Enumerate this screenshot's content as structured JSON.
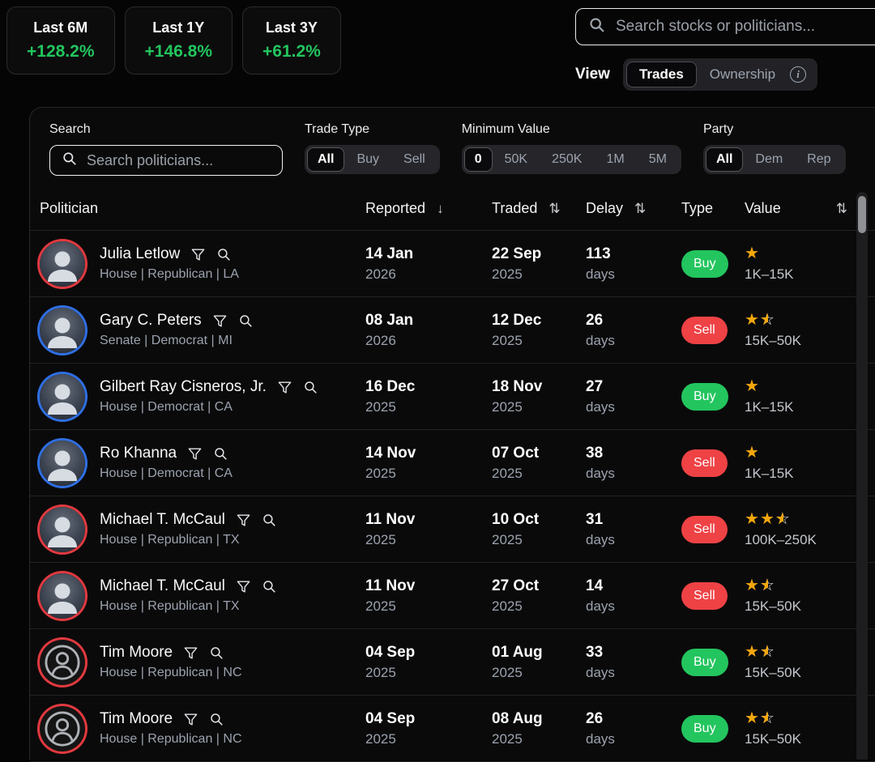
{
  "colors": {
    "positive": "#22c55e",
    "buy": "#23c55e",
    "sell": "#ee4245",
    "star": "#f3a70d",
    "republican_ring": "#e2393f",
    "democrat_ring": "#2f6fe4"
  },
  "stats": [
    {
      "label": "Last 6M",
      "value": "+128.2%"
    },
    {
      "label": "Last 1Y",
      "value": "+146.8%"
    },
    {
      "label": "Last 3Y",
      "value": "+61.2%"
    }
  ],
  "top_search": {
    "placeholder": "Search stocks or politicians..."
  },
  "view": {
    "label": "View",
    "options": [
      {
        "label": "Trades",
        "selected": true
      },
      {
        "label": "Ownership",
        "selected": false
      }
    ]
  },
  "filters": {
    "search": {
      "label": "Search",
      "placeholder": "Search politicians..."
    },
    "trade_type": {
      "label": "Trade Type",
      "options": [
        "All",
        "Buy",
        "Sell"
      ],
      "selected": "All"
    },
    "minimum_value": {
      "label": "Minimum Value",
      "options": [
        "0",
        "50K",
        "250K",
        "1M",
        "5M"
      ],
      "selected": "0"
    },
    "party": {
      "label": "Party",
      "options": [
        "All",
        "Dem",
        "Rep"
      ],
      "selected": "All"
    }
  },
  "table": {
    "columns": [
      {
        "label": "Politician"
      },
      {
        "label": "Reported",
        "sort_icon": "↓"
      },
      {
        "label": "Traded",
        "sort_icon": "⇅"
      },
      {
        "label": "Delay",
        "sort_icon": "⇅"
      },
      {
        "label": "Type"
      },
      {
        "label": "Value",
        "sort_icon": "⇅"
      }
    ],
    "rows": [
      {
        "name": "Julia Letlow",
        "meta": "House | Republican | LA",
        "party": "republican",
        "avatar": "photo",
        "reported": {
          "date": "14 Jan",
          "year": "2026"
        },
        "traded": {
          "date": "22 Sep",
          "year": "2025"
        },
        "delay": {
          "num": "113",
          "unit": "days"
        },
        "type": "Buy",
        "stars": 1,
        "value": "1K–15K"
      },
      {
        "name": "Gary C. Peters",
        "meta": "Senate | Democrat | MI",
        "party": "democrat",
        "avatar": "photo",
        "reported": {
          "date": "08 Jan",
          "year": "2026"
        },
        "traded": {
          "date": "12 Dec",
          "year": "2025"
        },
        "delay": {
          "num": "26",
          "unit": "days"
        },
        "type": "Sell",
        "stars": 1.5,
        "value": "15K–50K"
      },
      {
        "name": "Gilbert Ray Cisneros, Jr.",
        "meta": "House | Democrat | CA",
        "party": "democrat",
        "avatar": "photo",
        "reported": {
          "date": "16 Dec",
          "year": "2025"
        },
        "traded": {
          "date": "18 Nov",
          "year": "2025"
        },
        "delay": {
          "num": "27",
          "unit": "days"
        },
        "type": "Buy",
        "stars": 1,
        "value": "1K–15K"
      },
      {
        "name": "Ro Khanna",
        "meta": "House | Democrat | CA",
        "party": "democrat",
        "avatar": "photo",
        "reported": {
          "date": "14 Nov",
          "year": "2025"
        },
        "traded": {
          "date": "07 Oct",
          "year": "2025"
        },
        "delay": {
          "num": "38",
          "unit": "days"
        },
        "type": "Sell",
        "stars": 1,
        "value": "1K–15K"
      },
      {
        "name": "Michael T. McCaul",
        "meta": "House | Republican | TX",
        "party": "republican",
        "avatar": "photo",
        "reported": {
          "date": "11 Nov",
          "year": "2025"
        },
        "traded": {
          "date": "10 Oct",
          "year": "2025"
        },
        "delay": {
          "num": "31",
          "unit": "days"
        },
        "type": "Sell",
        "stars": 2.5,
        "value": "100K–250K"
      },
      {
        "name": "Michael T. McCaul",
        "meta": "House | Republican | TX",
        "party": "republican",
        "avatar": "photo",
        "reported": {
          "date": "11 Nov",
          "year": "2025"
        },
        "traded": {
          "date": "27 Oct",
          "year": "2025"
        },
        "delay": {
          "num": "14",
          "unit": "days"
        },
        "type": "Sell",
        "stars": 1.5,
        "value": "15K–50K"
      },
      {
        "name": "Tim Moore",
        "meta": "House | Republican | NC",
        "party": "republican",
        "avatar": "placeholder",
        "reported": {
          "date": "04 Sep",
          "year": "2025"
        },
        "traded": {
          "date": "01 Aug",
          "year": "2025"
        },
        "delay": {
          "num": "33",
          "unit": "days"
        },
        "type": "Buy",
        "stars": 1.5,
        "value": "15K–50K"
      },
      {
        "name": "Tim Moore",
        "meta": "House | Republican | NC",
        "party": "republican",
        "avatar": "placeholder",
        "reported": {
          "date": "04 Sep",
          "year": "2025"
        },
        "traded": {
          "date": "08 Aug",
          "year": "2025"
        },
        "delay": {
          "num": "26",
          "unit": "days"
        },
        "type": "Buy",
        "stars": 1.5,
        "value": "15K–50K"
      }
    ]
  }
}
